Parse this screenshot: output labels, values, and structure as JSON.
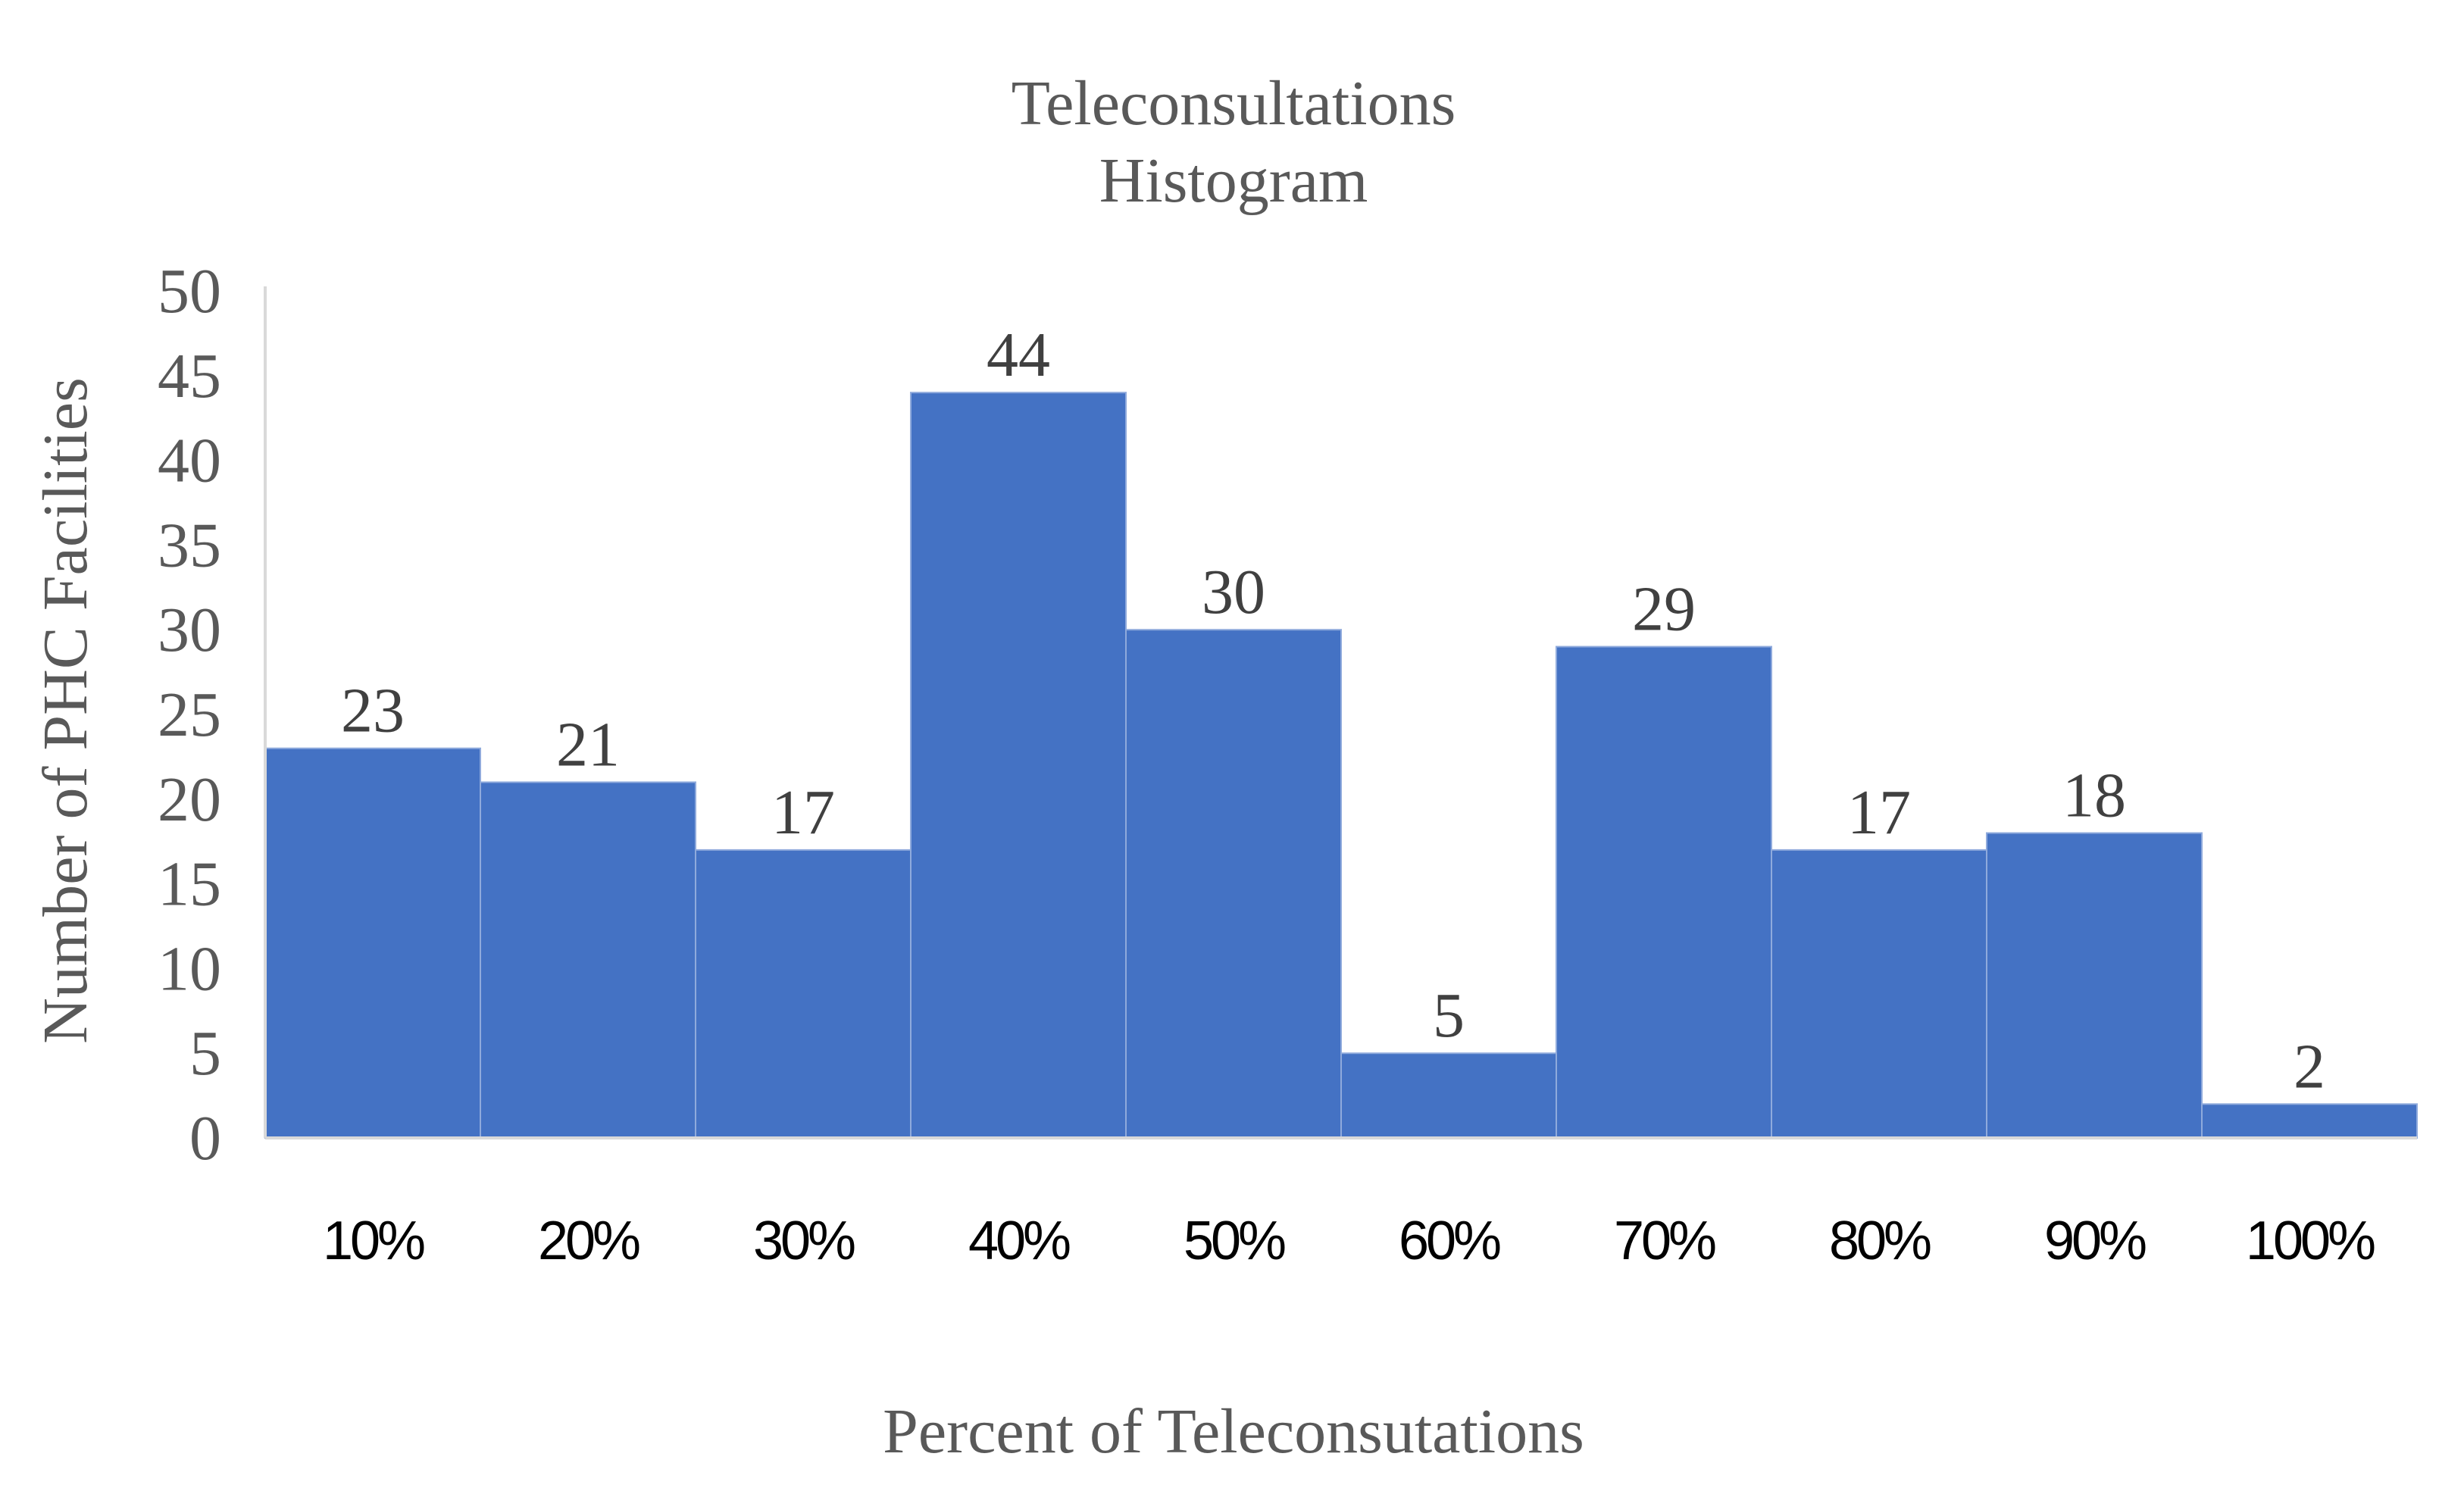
{
  "chart_data": {
    "type": "bar",
    "title": [
      "Teleconsultations",
      "Histogram"
    ],
    "xlabel": "Percent of Teleconsutations",
    "ylabel": "Number of PHC Facilities",
    "categories": [
      "10%",
      "20%",
      "30%",
      "40%",
      "50%",
      "60%",
      "70%",
      "80%",
      "90%",
      "100%"
    ],
    "values": [
      23,
      21,
      17,
      44,
      30,
      5,
      29,
      17,
      18,
      2
    ],
    "ylim": [
      0,
      50
    ],
    "yticks": [
      0,
      5,
      10,
      15,
      20,
      25,
      30,
      35,
      40,
      45,
      50
    ],
    "data_labels": true,
    "grid": false,
    "bar_gap": 0,
    "colors": {
      "bar": "#4472C4",
      "bar_edge": "#8FAADC",
      "axis": "#D9D9D9"
    }
  }
}
